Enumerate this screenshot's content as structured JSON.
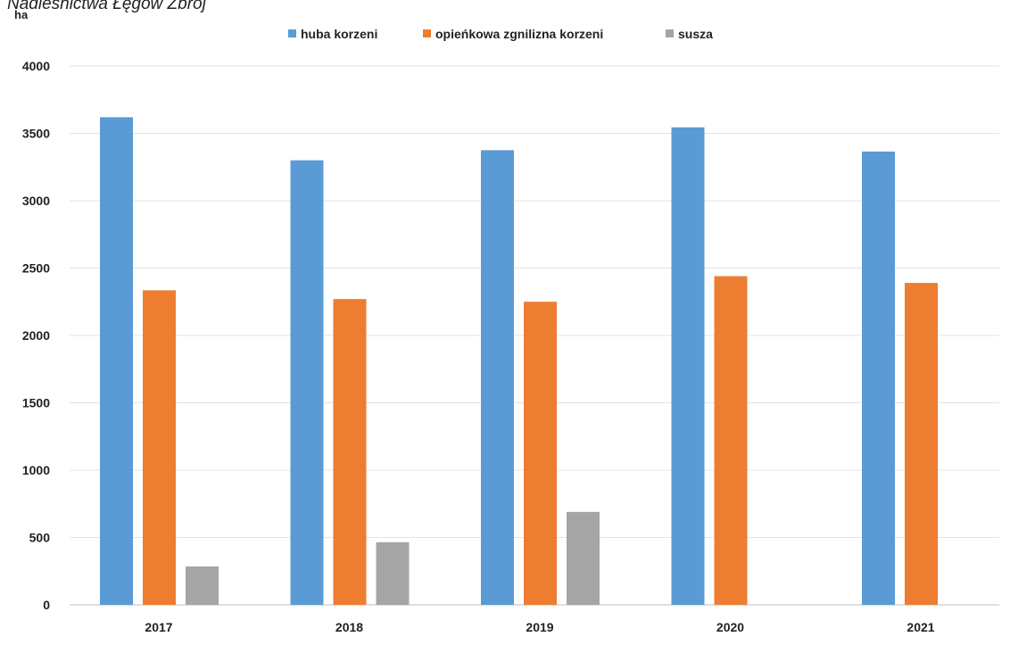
{
  "header": {
    "text": "Nadleśnictwa Łęgów Zbrój"
  },
  "chart_data": {
    "type": "bar",
    "ylabel": "ha",
    "categories": [
      "2017",
      "2018",
      "2019",
      "2020",
      "2021"
    ],
    "series": [
      {
        "name": "huba korzeni",
        "color": "#5b9bd5",
        "values": [
          3620,
          3300,
          3375,
          3545,
          3365
        ]
      },
      {
        "name": "opieńkowa zgnilizna korzeni",
        "color": "#ed7d31",
        "values": [
          2335,
          2270,
          2250,
          2440,
          2390
        ]
      },
      {
        "name": "susza",
        "color": "#a5a5a5",
        "values": [
          285,
          465,
          690,
          null,
          null
        ]
      }
    ],
    "ylim": [
      0,
      4000
    ],
    "yticks": [
      0,
      500,
      1000,
      1500,
      2000,
      2500,
      3000,
      3500,
      4000
    ],
    "grid": true,
    "legend_position": "top-center"
  }
}
